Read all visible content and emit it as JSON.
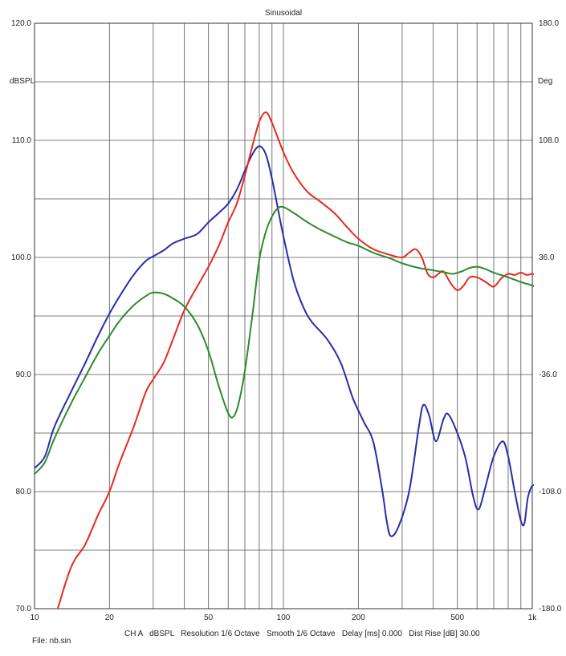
{
  "chart_data": {
    "type": "line",
    "title": "Sinusoidal",
    "ylabel_left": "dBSPL",
    "ylabel_right": "Deg",
    "x_scale": "log",
    "xlim": [
      10,
      1000
    ],
    "ylim_left": [
      70,
      120
    ],
    "ylim_right": [
      -180,
      180
    ],
    "x_ticks": [
      {
        "value": 10,
        "label": "10"
      },
      {
        "value": 20,
        "label": "20"
      },
      {
        "value": 50,
        "label": "50"
      },
      {
        "value": 100,
        "label": "100"
      },
      {
        "value": 200,
        "label": "200"
      },
      {
        "value": 500,
        "label": "500"
      },
      {
        "value": 1000,
        "label": "1k"
      }
    ],
    "y_ticks_left": [
      {
        "value": 120,
        "label": "120.0"
      },
      {
        "value": 110,
        "label": "110.0"
      },
      {
        "value": 100,
        "label": "100.0"
      },
      {
        "value": 90,
        "label": "90.0"
      },
      {
        "value": 80,
        "label": "80.0"
      },
      {
        "value": 70,
        "label": "70.0"
      }
    ],
    "y_ticks_right": [
      {
        "value": 180,
        "label": "180.0"
      },
      {
        "value": 108,
        "label": "108.0"
      },
      {
        "value": 36,
        "label": "36.0"
      },
      {
        "value": -36,
        "label": "-36.0"
      },
      {
        "value": -108,
        "label": "-108.0"
      },
      {
        "value": -180,
        "label": "-180.0"
      }
    ],
    "grid": true,
    "footer_left": "File: nb.sin",
    "footer_center": "CH A   dBSPL   Resolution 1/6 Octave   Smooth 1/6 Octave   Delay [ms] 0.000   Dist Rise [dB] 30.00",
    "series": [
      {
        "color": "#2b2ba8",
        "points": [
          [
            10,
            82.0
          ],
          [
            11,
            83.0
          ],
          [
            12,
            85.5
          ],
          [
            14,
            88.5
          ],
          [
            16,
            91.0
          ],
          [
            18,
            93.3
          ],
          [
            20,
            95.2
          ],
          [
            22,
            96.7
          ],
          [
            25,
            98.5
          ],
          [
            28,
            99.7
          ],
          [
            30,
            100.1
          ],
          [
            33,
            100.6
          ],
          [
            36,
            101.2
          ],
          [
            40,
            101.6
          ],
          [
            45,
            102.0
          ],
          [
            50,
            103.0
          ],
          [
            55,
            103.8
          ],
          [
            60,
            104.6
          ],
          [
            65,
            105.8
          ],
          [
            70,
            107.4
          ],
          [
            75,
            108.8
          ],
          [
            80,
            109.5
          ],
          [
            85,
            108.8
          ],
          [
            90,
            106.7
          ],
          [
            95,
            104.2
          ],
          [
            100,
            101.8
          ],
          [
            110,
            98.0
          ],
          [
            120,
            95.8
          ],
          [
            130,
            94.5
          ],
          [
            150,
            93.0
          ],
          [
            170,
            91.0
          ],
          [
            190,
            88.0
          ],
          [
            210,
            86.0
          ],
          [
            230,
            84.2
          ],
          [
            250,
            80.0
          ],
          [
            260,
            77.5
          ],
          [
            270,
            76.2
          ],
          [
            290,
            77.0
          ],
          [
            320,
            80.0
          ],
          [
            350,
            85.5
          ],
          [
            365,
            87.4
          ],
          [
            385,
            86.5
          ],
          [
            410,
            84.3
          ],
          [
            440,
            86.2
          ],
          [
            460,
            86.6
          ],
          [
            500,
            85.0
          ],
          [
            540,
            82.8
          ],
          [
            580,
            79.5
          ],
          [
            610,
            78.5
          ],
          [
            650,
            80.5
          ],
          [
            700,
            83.0
          ],
          [
            760,
            84.3
          ],
          [
            800,
            83.0
          ],
          [
            850,
            80.0
          ],
          [
            900,
            77.5
          ],
          [
            930,
            77.3
          ],
          [
            960,
            79.5
          ],
          [
            1000,
            80.5
          ],
          [
            1040,
            80.4
          ]
        ]
      },
      {
        "color": "#e42a20",
        "points": [
          [
            10,
            63.5
          ],
          [
            12,
            69.0
          ],
          [
            14,
            73.5
          ],
          [
            16,
            75.5
          ],
          [
            18,
            78.0
          ],
          [
            20,
            80.0
          ],
          [
            22,
            82.5
          ],
          [
            25,
            85.5
          ],
          [
            28,
            88.5
          ],
          [
            30,
            89.6
          ],
          [
            33,
            91.0
          ],
          [
            36,
            93.0
          ],
          [
            40,
            95.5
          ],
          [
            45,
            97.5
          ],
          [
            50,
            99.2
          ],
          [
            55,
            101.0
          ],
          [
            60,
            103.0
          ],
          [
            65,
            104.6
          ],
          [
            70,
            107.0
          ],
          [
            75,
            109.5
          ],
          [
            80,
            111.6
          ],
          [
            85,
            112.4
          ],
          [
            90,
            111.5
          ],
          [
            100,
            109.0
          ],
          [
            110,
            107.2
          ],
          [
            125,
            105.6
          ],
          [
            140,
            104.8
          ],
          [
            160,
            103.8
          ],
          [
            180,
            102.6
          ],
          [
            200,
            101.6
          ],
          [
            230,
            100.7
          ],
          [
            270,
            100.2
          ],
          [
            300,
            100.0
          ],
          [
            320,
            100.4
          ],
          [
            340,
            100.7
          ],
          [
            360,
            100.0
          ],
          [
            380,
            98.6
          ],
          [
            400,
            98.3
          ],
          [
            420,
            98.6
          ],
          [
            440,
            98.8
          ],
          [
            470,
            97.8
          ],
          [
            500,
            97.2
          ],
          [
            530,
            97.6
          ],
          [
            560,
            98.3
          ],
          [
            600,
            98.3
          ],
          [
            650,
            97.9
          ],
          [
            700,
            97.5
          ],
          [
            750,
            98.2
          ],
          [
            800,
            98.6
          ],
          [
            850,
            98.5
          ],
          [
            900,
            98.7
          ],
          [
            950,
            98.5
          ],
          [
            1000,
            98.6
          ],
          [
            1040,
            98.4
          ]
        ]
      },
      {
        "color": "#2d8a2d",
        "points": [
          [
            10,
            81.5
          ],
          [
            11,
            82.5
          ],
          [
            12,
            84.5
          ],
          [
            14,
            87.5
          ],
          [
            16,
            89.8
          ],
          [
            18,
            91.8
          ],
          [
            20,
            93.3
          ],
          [
            22,
            94.6
          ],
          [
            25,
            95.9
          ],
          [
            28,
            96.7
          ],
          [
            30,
            97.0
          ],
          [
            33,
            96.9
          ],
          [
            36,
            96.5
          ],
          [
            40,
            95.8
          ],
          [
            45,
            94.3
          ],
          [
            50,
            92.0
          ],
          [
            55,
            89.0
          ],
          [
            60,
            86.7
          ],
          [
            63,
            86.4
          ],
          [
            66,
            87.5
          ],
          [
            70,
            90.3
          ],
          [
            75,
            95.0
          ],
          [
            80,
            99.8
          ],
          [
            85,
            102.2
          ],
          [
            90,
            103.5
          ],
          [
            95,
            104.2
          ],
          [
            100,
            104.3
          ],
          [
            110,
            103.8
          ],
          [
            125,
            103.0
          ],
          [
            140,
            102.4
          ],
          [
            160,
            101.8
          ],
          [
            180,
            101.3
          ],
          [
            200,
            101.0
          ],
          [
            230,
            100.4
          ],
          [
            270,
            99.9
          ],
          [
            300,
            99.5
          ],
          [
            350,
            99.1
          ],
          [
            400,
            98.9
          ],
          [
            450,
            98.7
          ],
          [
            480,
            98.6
          ],
          [
            520,
            98.8
          ],
          [
            560,
            99.1
          ],
          [
            600,
            99.2
          ],
          [
            650,
            99.0
          ],
          [
            700,
            98.7
          ],
          [
            800,
            98.3
          ],
          [
            900,
            97.9
          ],
          [
            1000,
            97.6
          ],
          [
            1040,
            97.4
          ]
        ]
      }
    ]
  }
}
